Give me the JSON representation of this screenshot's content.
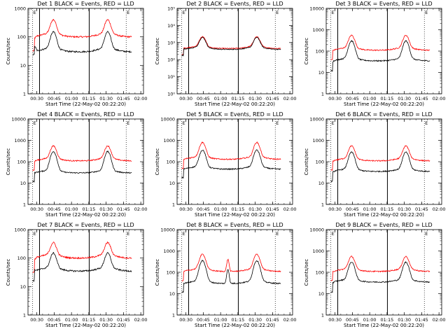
{
  "chart_data": {
    "type": "line",
    "title_suffix": "BLACK = Events, RED = LLD",
    "xlabel": "Start Time (22-May-02 00:22:20)",
    "ylabel": "Counts/sec",
    "x_ticks": [
      "00:30",
      "00:45",
      "01:00",
      "01:15",
      "01:30",
      "01:45",
      "02:00"
    ],
    "x_tick_minutes": [
      7.67,
      22.67,
      37.67,
      52.67,
      67.67,
      82.67,
      97.67
    ],
    "xlim_minutes": [
      0,
      100
    ],
    "y_scale": "log",
    "series_colors": {
      "events": "#000000",
      "lld": "#ff0000"
    },
    "markers": {
      "left_dotted": 4,
      "solid_1": 10,
      "solid_2": 53,
      "right_dotted": 85,
      "label_left": "E",
      "label_right": "E"
    },
    "panels": [
      {
        "title": "Det 1",
        "ylim": [
          1,
          1000
        ],
        "y_tick_labels": [
          "1",
          "10",
          "100",
          "1000"
        ],
        "events": {
          "base": 30,
          "peak": 150,
          "start": 60
        },
        "lld": {
          "base": 100,
          "peak": 400,
          "start": 80
        }
      },
      {
        "title": "Det 2",
        "ylim": [
          1,
          100000
        ],
        "y_tick_labels": [
          "10⁰",
          "10¹",
          "10²",
          "10³",
          "10⁴",
          "10⁵"
        ],
        "events": {
          "base": 400,
          "peak": 2000,
          "start": 450
        },
        "lld": {
          "base": 450,
          "peak": 2200,
          "start": 500
        }
      },
      {
        "title": "Det 3",
        "ylim": [
          1,
          10000
        ],
        "y_tick_labels": [
          "1",
          "10",
          "100",
          "1000",
          "10000"
        ],
        "events": {
          "base": 35,
          "peak": 300,
          "start": 30
        },
        "lld": {
          "base": 110,
          "peak": 550,
          "start": 100
        }
      },
      {
        "title": "Det 4",
        "ylim": [
          1,
          10000
        ],
        "y_tick_labels": [
          "1",
          "10",
          "100",
          "1000",
          "10000"
        ],
        "events": {
          "base": 30,
          "peak": 300,
          "start": 30
        },
        "lld": {
          "base": 110,
          "peak": 550,
          "start": 100
        }
      },
      {
        "title": "Det 5",
        "ylim": [
          1,
          10000
        ],
        "y_tick_labels": [
          "1",
          "10",
          "100",
          "1000",
          "10000"
        ],
        "events": {
          "base": 45,
          "peak": 350,
          "start": 45
        },
        "lld": {
          "base": 130,
          "peak": 800,
          "start": 120
        }
      },
      {
        "title": "Det 6",
        "ylim": [
          1,
          10000
        ],
        "y_tick_labels": [
          "1",
          "10",
          "100",
          "1000",
          "10000"
        ],
        "events": {
          "base": 35,
          "peak": 280,
          "start": 30
        },
        "lld": {
          "base": 110,
          "peak": 550,
          "start": 100
        }
      },
      {
        "title": "Det 7",
        "ylim": [
          1,
          1000
        ],
        "y_tick_labels": [
          "1",
          "10",
          "100",
          "1000"
        ],
        "events": {
          "base": 35,
          "peak": 150,
          "start": 40
        },
        "lld": {
          "base": 100,
          "peak": 350,
          "start": 80
        }
      },
      {
        "title": "Det 8",
        "ylim": [
          1,
          10000
        ],
        "y_tick_labels": [
          "1",
          "10",
          "100",
          "1000",
          "10000"
        ],
        "events": {
          "base": 30,
          "peak": 350,
          "start": 30,
          "bump_minute": 44,
          "bump": 140
        },
        "lld": {
          "base": 110,
          "peak": 700,
          "start": 100,
          "bump_minute": 44,
          "bump": 400
        }
      },
      {
        "title": "Det 9",
        "ylim": [
          1,
          10000
        ],
        "y_tick_labels": [
          "1",
          "10",
          "100",
          "1000",
          "10000"
        ],
        "events": {
          "base": 35,
          "peak": 300,
          "start": 30
        },
        "lld": {
          "base": 110,
          "peak": 550,
          "start": 100
        }
      }
    ]
  }
}
